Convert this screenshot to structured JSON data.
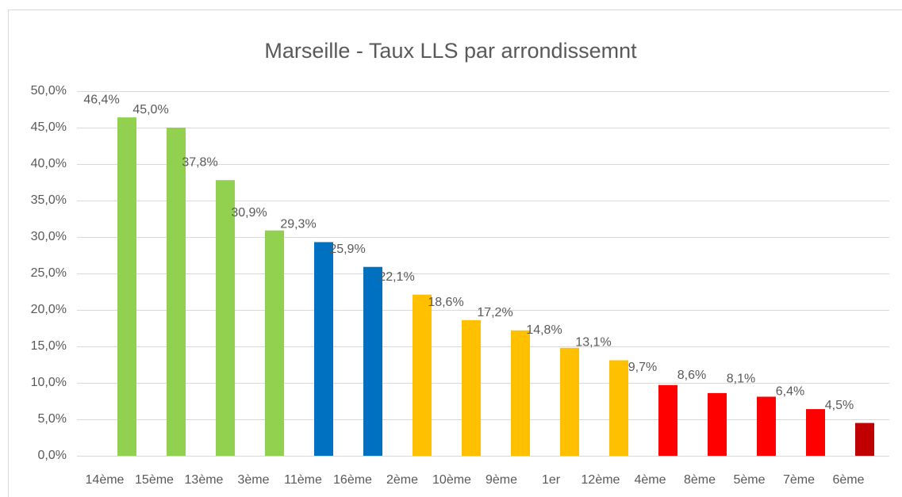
{
  "chart_data": {
    "type": "bar",
    "title": "Marseille - Taux LLS par arrondissemnt",
    "categories": [
      "14ème",
      "15ème",
      "13ème",
      "3ème",
      "11ème",
      "16ème",
      "2ème",
      "10ème",
      "9ème",
      "1er",
      "12ème",
      "4ème",
      "8ème",
      "5ème",
      "7ème",
      "6ème"
    ],
    "values": [
      46.4,
      45.0,
      37.8,
      30.9,
      29.3,
      25.9,
      22.1,
      18.6,
      17.2,
      14.8,
      13.1,
      9.7,
      8.6,
      8.1,
      6.4,
      4.5
    ],
    "value_labels": [
      "46,4%",
      "45,0%",
      "37,8%",
      "30,9%",
      "29,3%",
      "25,9%",
      "22,1%",
      "18,6%",
      "17,2%",
      "14,8%",
      "13,1%",
      "9,7%",
      "8,6%",
      "8,1%",
      "6,4%",
      "4,5%"
    ],
    "colors": [
      "#92d050",
      "#92d050",
      "#92d050",
      "#92d050",
      "#0070c0",
      "#0070c0",
      "#ffc000",
      "#ffc000",
      "#ffc000",
      "#ffc000",
      "#ffc000",
      "#ff0000",
      "#ff0000",
      "#ff0000",
      "#ff0000",
      "#c00000"
    ],
    "ylim": [
      0,
      50
    ],
    "yticks": [
      {
        "value": 0,
        "label": "0,0%"
      },
      {
        "value": 5,
        "label": "5,0%"
      },
      {
        "value": 10,
        "label": "10,0%"
      },
      {
        "value": 15,
        "label": "15,0%"
      },
      {
        "value": 20,
        "label": "20,0%"
      },
      {
        "value": 25,
        "label": "25,0%"
      },
      {
        "value": 30,
        "label": "30,0%"
      },
      {
        "value": 35,
        "label": "35,0%"
      },
      {
        "value": 40,
        "label": "40,0%"
      },
      {
        "value": 45,
        "label": "45,0%"
      },
      {
        "value": 50,
        "label": "50,0%"
      }
    ],
    "grid": true
  }
}
